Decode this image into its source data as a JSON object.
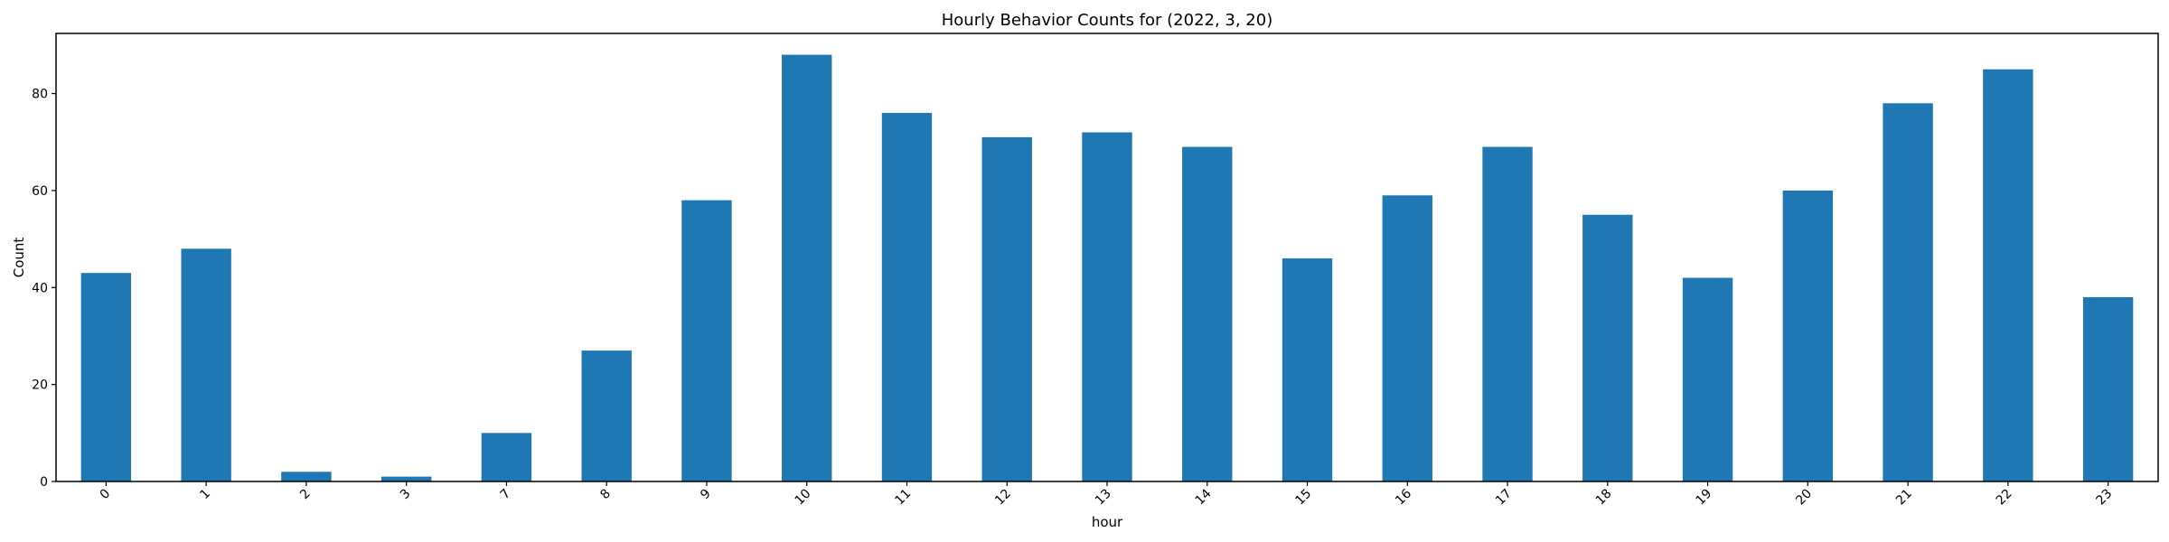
{
  "chart_data": {
    "type": "bar",
    "title": "Hourly Behavior Counts for (2022, 3, 20)",
    "xlabel": "hour",
    "ylabel": "Count",
    "categories": [
      "0",
      "1",
      "2",
      "3",
      "7",
      "8",
      "9",
      "10",
      "11",
      "12",
      "13",
      "14",
      "15",
      "16",
      "17",
      "18",
      "19",
      "20",
      "21",
      "22",
      "23"
    ],
    "values": [
      43,
      48,
      2,
      1,
      10,
      27,
      58,
      88,
      76,
      71,
      72,
      69,
      46,
      59,
      69,
      55,
      42,
      60,
      78,
      85,
      38
    ],
    "yticks": [
      0,
      20,
      40,
      60,
      80
    ],
    "ylim": [
      0,
      92.4
    ],
    "xtick_rotation": 45,
    "grid": false,
    "legend": "none",
    "bar_color": "#1f77b4"
  }
}
